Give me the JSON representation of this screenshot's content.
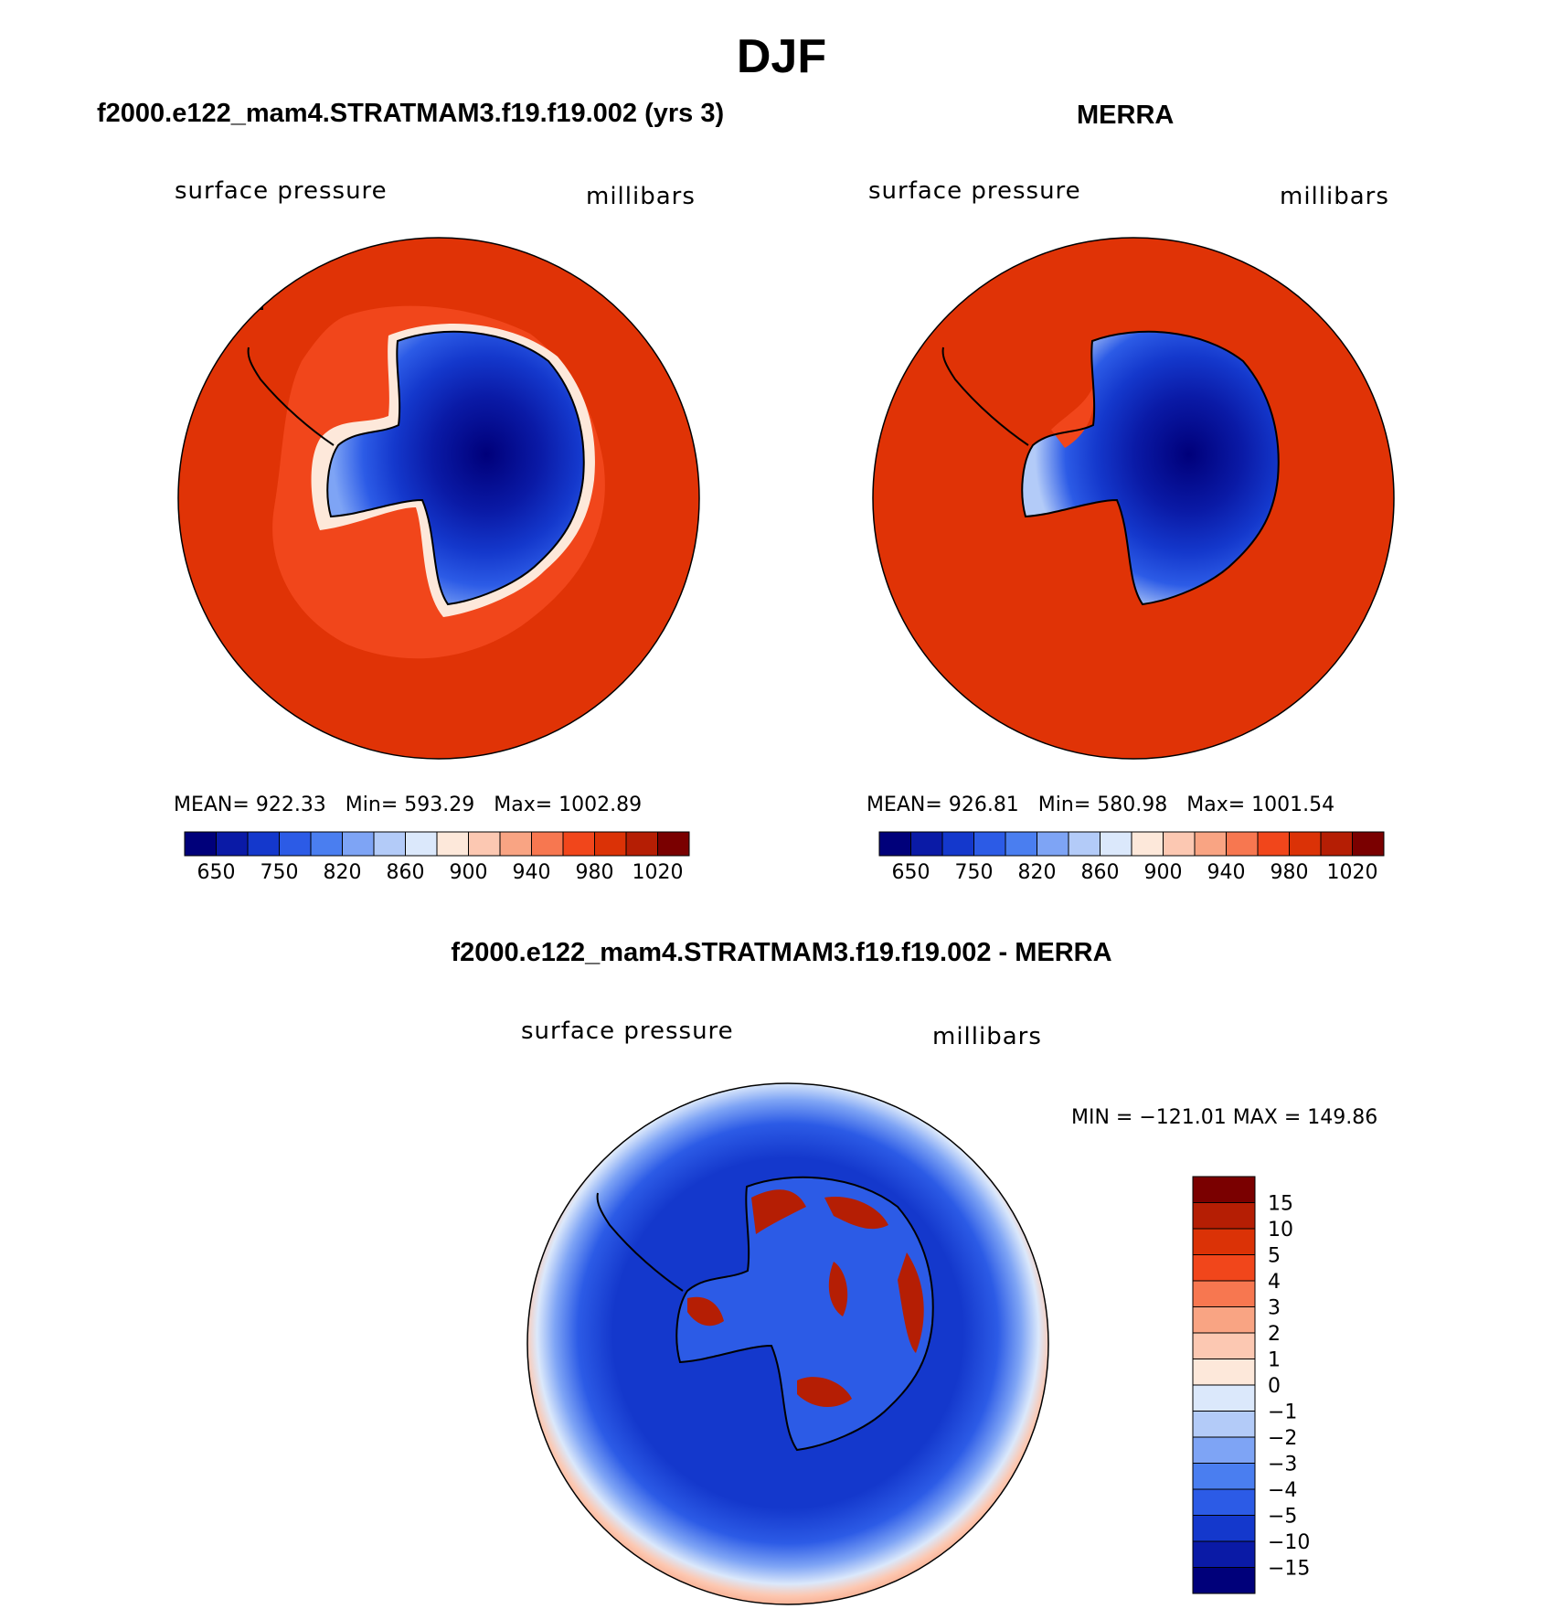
{
  "page": {
    "title": "DJF",
    "bottom_title": "f2000.e122_mam4.STRATMAM3.f19.f19.002 - MERRA"
  },
  "panels": [
    {
      "title": "f2000.e122_mam4.STRATMAM3.f19.f19.002 (yrs 3)",
      "left_label": "surface pressure",
      "right_label": "millibars",
      "stats": {
        "mean_label": "MEAN=",
        "mean": "922.33",
        "min_label": "Min=",
        "min": "593.29",
        "max_label": "Max=",
        "max": "1002.89"
      }
    },
    {
      "title": "MERRA",
      "left_label": "surface pressure",
      "right_label": "millibars",
      "stats": {
        "mean_label": "MEAN=",
        "mean": "926.81",
        "min_label": "Min=",
        "min": "580.98",
        "max_label": "Max=",
        "max": "1001.54"
      }
    }
  ],
  "diff_panel": {
    "left_label": "surface pressure",
    "right_label": "millibars",
    "minmax_text": "MIN = −121.01  MAX = 149.86"
  },
  "chart_data": [
    {
      "type": "heatmap",
      "title": "f2000.e122_mam4.STRATMAM3.f19.f19.002 (yrs 3)",
      "variable": "surface pressure",
      "units": "millibars",
      "projection": "south polar stereographic",
      "mean": 922.33,
      "min": 593.29,
      "max": 1002.89,
      "colorbar_labels": [
        "650",
        "750",
        "820",
        "860",
        "900",
        "940",
        "980",
        "1020"
      ],
      "colorbar_colors": [
        "#00007a",
        "#0a1aa6",
        "#1438cc",
        "#2c5be6",
        "#4a7ef0",
        "#7ea4f5",
        "#b3cbf8",
        "#dbe8fb",
        "#fde8da",
        "#fcc8b2",
        "#f9a483",
        "#f77750",
        "#f1461b",
        "#db3206",
        "#b51e04",
        "#7a0000"
      ]
    },
    {
      "type": "heatmap",
      "title": "MERRA",
      "variable": "surface pressure",
      "units": "millibars",
      "projection": "south polar stereographic",
      "mean": 926.81,
      "min": 580.98,
      "max": 1001.54,
      "colorbar_labels": [
        "650",
        "750",
        "820",
        "860",
        "900",
        "940",
        "980",
        "1020"
      ],
      "colorbar_colors": [
        "#00007a",
        "#0a1aa6",
        "#1438cc",
        "#2c5be6",
        "#4a7ef0",
        "#7ea4f5",
        "#b3cbf8",
        "#dbe8fb",
        "#fde8da",
        "#fcc8b2",
        "#f9a483",
        "#f77750",
        "#f1461b",
        "#db3206",
        "#b51e04",
        "#7a0000"
      ]
    },
    {
      "type": "heatmap",
      "title": "f2000.e122_mam4.STRATMAM3.f19.f19.002 - MERRA",
      "variable": "surface pressure",
      "units": "millibars",
      "projection": "south polar stereographic",
      "min": -121.01,
      "max": 149.86,
      "colorbar_labels": [
        "15",
        "10",
        "5",
        "4",
        "3",
        "2",
        "1",
        "0",
        "−1",
        "−2",
        "−3",
        "−4",
        "−5",
        "−10",
        "−15"
      ],
      "colorbar_colors": [
        "#7a0000",
        "#b51e04",
        "#db3206",
        "#f1461b",
        "#f77750",
        "#f9a483",
        "#fcc8b2",
        "#fde8da",
        "#dbe8fb",
        "#b3cbf8",
        "#7ea4f5",
        "#4a7ef0",
        "#2c5be6",
        "#1438cc",
        "#0a1aa6",
        "#00007a"
      ]
    }
  ]
}
